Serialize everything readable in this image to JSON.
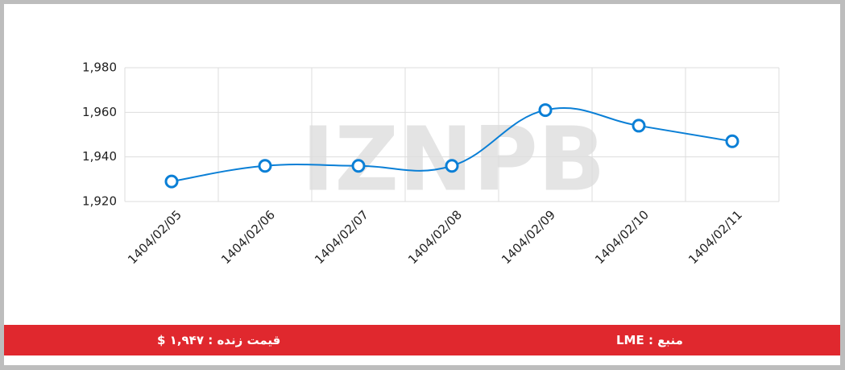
{
  "watermark": "IZNPB",
  "chart_data": {
    "type": "line",
    "categories": [
      "1404/02/05",
      "1404/02/06",
      "1404/02/07",
      "1404/02/08",
      "1404/02/09",
      "1404/02/10",
      "1404/02/11"
    ],
    "values": [
      1929,
      1936,
      1936,
      1936,
      1961,
      1954,
      1947
    ],
    "color": "#0a7fd6",
    "ylim": [
      1920,
      1980
    ],
    "yticks": [
      {
        "value": 1920,
        "label": "1,920"
      },
      {
        "value": 1940,
        "label": "1,940"
      },
      {
        "value": 1960,
        "label": "1,960"
      },
      {
        "value": 1980,
        "label": "1,980"
      }
    ],
    "grid": true
  },
  "footer": {
    "live_price": "قیمت زنده : ۱,۹۴۷ $",
    "source": "منبع : LME"
  }
}
